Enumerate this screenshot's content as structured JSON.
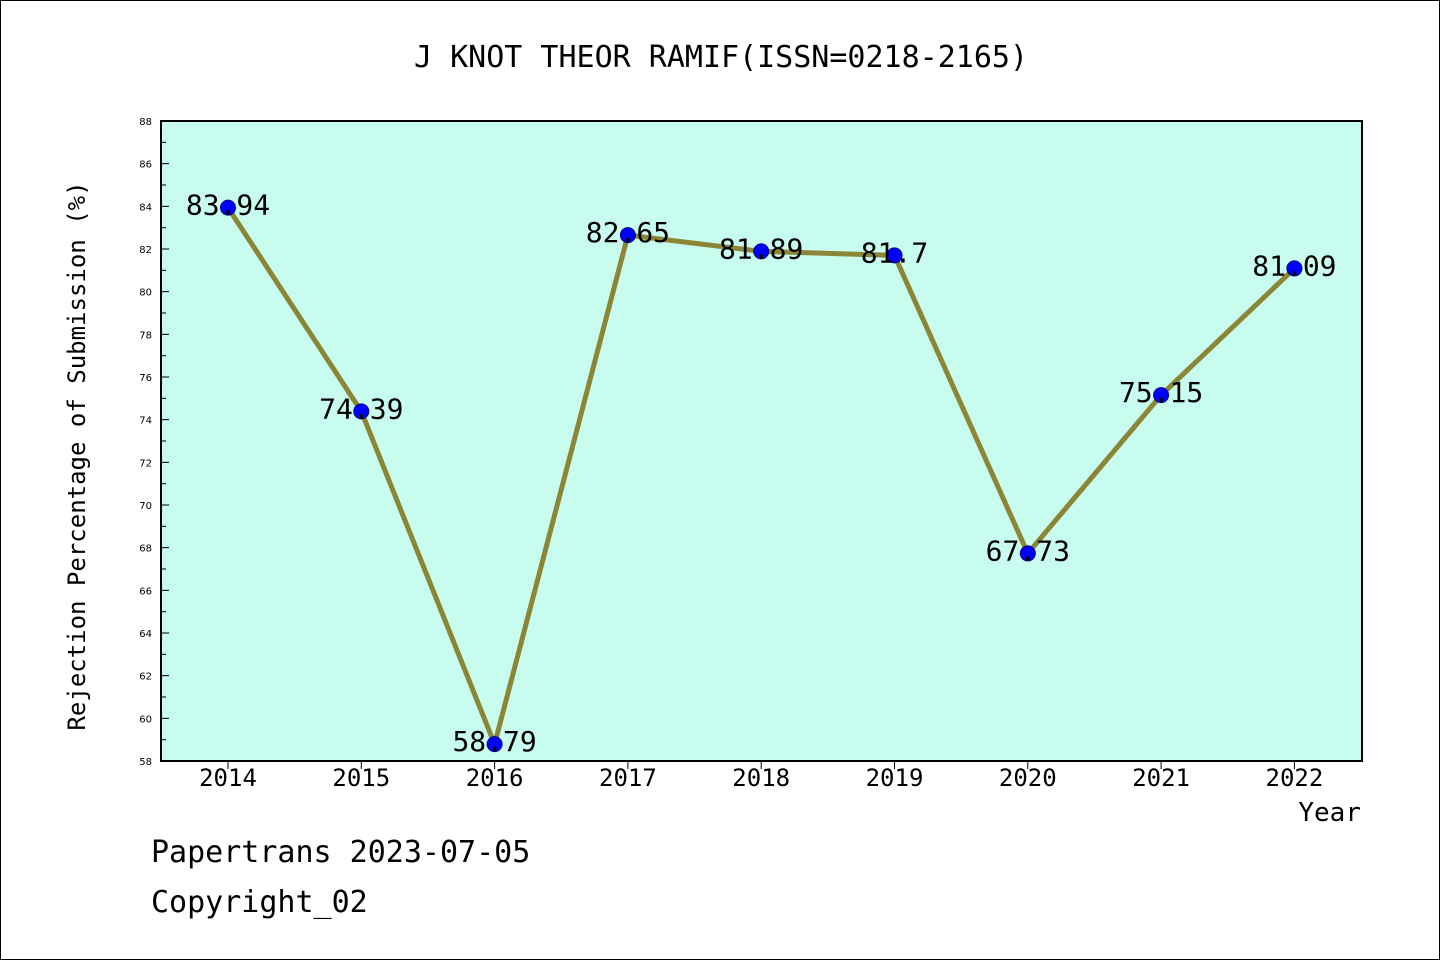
{
  "chart_data": {
    "type": "line",
    "title": "J KNOT THEOR RAMIF(ISSN=0218-2165)",
    "xlabel": "Year",
    "ylabel": "Rejection Percentage of Submission (%)",
    "x": [
      "2014",
      "2015",
      "2016",
      "2017",
      "2018",
      "2019",
      "2020",
      "2021",
      "2022"
    ],
    "values": [
      83.94,
      74.39,
      58.79,
      82.65,
      81.89,
      81.7,
      67.73,
      75.15,
      81.09
    ],
    "data_labels": [
      "83.94",
      "74.39",
      "58.79",
      "82.65",
      "81.89",
      "81.7",
      "67.73",
      "75.15",
      "81.09"
    ],
    "ylim": [
      58,
      88
    ],
    "yticks": [
      "58",
      "60",
      "62",
      "64",
      "66",
      "68",
      "70",
      "72",
      "74",
      "76",
      "78",
      "80",
      "82",
      "84",
      "86",
      "88"
    ],
    "grid": false,
    "plot_background": "#c8fcee",
    "line_color": "#8b8636",
    "marker_color": "#0000ff"
  },
  "footer": {
    "line1": "Papertrans 2023-07-05",
    "line2": "Copyright_02"
  }
}
